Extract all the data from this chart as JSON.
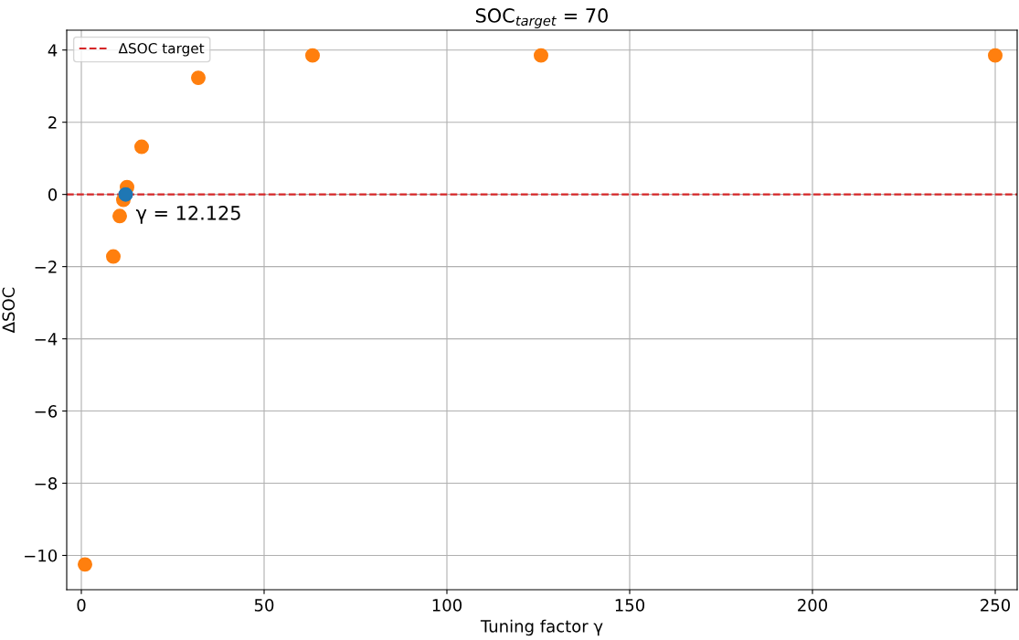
{
  "chart_data": {
    "type": "scatter",
    "title": "SOC$_{target}$ = 70",
    "xlabel": "Tuning factor γ",
    "ylabel": "ΔSOC",
    "series": [
      {
        "color": "#ff7f0e",
        "x": [
          1,
          8.75,
          10.5,
          11.5,
          12.5,
          16.5,
          32,
          63.25,
          125.75,
          250
        ],
        "values": [
          -10.25,
          -1.72,
          -0.6,
          -0.15,
          0.2,
          1.32,
          3.23,
          3.85,
          3.85,
          3.85
        ]
      },
      {
        "color": "#1f77b4",
        "x": [
          12.125
        ],
        "values": [
          0
        ]
      }
    ],
    "ref_lines": [
      {
        "axis": "y",
        "value": 0,
        "label": "ΔSOC target",
        "color": "#d62728",
        "line_style": "dashed"
      }
    ],
    "annotations": [
      {
        "text": "γ = 12.125",
        "x": 12.125,
        "y": 0
      }
    ],
    "xlim": [
      -4,
      256
    ],
    "xticks": [
      0,
      50,
      100,
      150,
      200,
      250
    ],
    "ylim": [
      -10.95,
      4.55
    ],
    "yticks": [
      {
        "value": -10,
        "label": "−10"
      },
      {
        "value": -8,
        "label": "−8"
      },
      {
        "value": -6,
        "label": "−6"
      },
      {
        "value": -4,
        "label": "−4"
      },
      {
        "value": -2,
        "label": "−2"
      },
      0,
      2,
      4
    ],
    "grid": true,
    "legend": "top left",
    "marker": "circle"
  }
}
